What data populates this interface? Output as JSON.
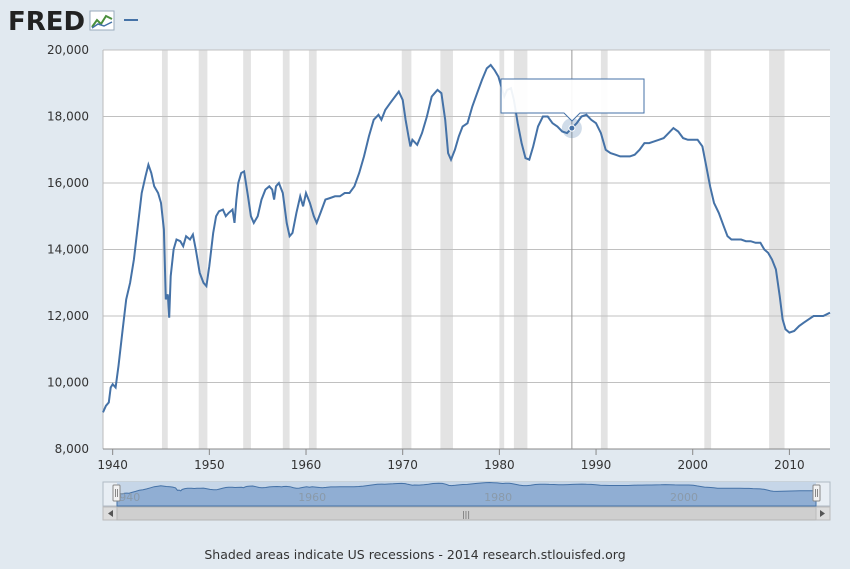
{
  "header": {
    "logo_text": "FRED",
    "logo_icon": "fred-chart-icon",
    "legend_dash": "series-legend-dash"
  },
  "footer": {
    "note": "Shaded areas indicate US recessions - 2014 research.stlouisfed.org"
  },
  "navigator": {
    "ticks": [
      "1940",
      "1960",
      "1980",
      "2000"
    ],
    "scroll_grip": "|||"
  },
  "tooltip": {
    "text": ""
  },
  "colors": {
    "line": "#4572a7",
    "recession": "#e3e3e3",
    "background": "#e1e9f0",
    "plot": "#ffffff",
    "grid": "#c0c0c0"
  },
  "chart_data": {
    "type": "line",
    "title": "",
    "xlabel": "",
    "ylabel": "",
    "xlim": [
      1939.0,
      2014.2
    ],
    "ylim": [
      8000,
      20000
    ],
    "x_ticks": [
      1940,
      1950,
      1960,
      1970,
      1980,
      1990,
      2000,
      2010
    ],
    "x_tick_labels": [
      "1940",
      "1950",
      "1960",
      "1970",
      "1980",
      "1990",
      "2000",
      "2010"
    ],
    "y_ticks": [
      8000,
      10000,
      12000,
      14000,
      16000,
      18000,
      20000
    ],
    "y_tick_labels": [
      "8,000",
      "10,000",
      "12,000",
      "14,000",
      "16,000",
      "18,000",
      "20,000"
    ],
    "grid": true,
    "recessions": [
      [
        1945.1,
        1945.7
      ],
      [
        1948.9,
        1949.8
      ],
      [
        1953.5,
        1954.3
      ],
      [
        1957.6,
        1958.3
      ],
      [
        1960.3,
        1961.1
      ],
      [
        1969.9,
        1970.9
      ],
      [
        1973.9,
        1975.2
      ],
      [
        1980.0,
        1980.5
      ],
      [
        1981.5,
        1982.9
      ],
      [
        1990.5,
        1991.2
      ],
      [
        2001.2,
        2001.9
      ],
      [
        2007.9,
        2009.5
      ]
    ],
    "hover_point": {
      "x": 1987.5,
      "y": 17650
    },
    "series": [
      {
        "points": [
          [
            1939.0,
            9100
          ],
          [
            1939.3,
            9300
          ],
          [
            1939.6,
            9400
          ],
          [
            1939.8,
            9850
          ],
          [
            1940.0,
            9950
          ],
          [
            1940.3,
            9850
          ],
          [
            1940.6,
            10500
          ],
          [
            1941.0,
            11500
          ],
          [
            1941.4,
            12500
          ],
          [
            1941.8,
            13000
          ],
          [
            1942.2,
            13700
          ],
          [
            1942.6,
            14700
          ],
          [
            1943.0,
            15700
          ],
          [
            1943.4,
            16200
          ],
          [
            1943.7,
            16550
          ],
          [
            1944.0,
            16300
          ],
          [
            1944.3,
            15900
          ],
          [
            1944.7,
            15700
          ],
          [
            1945.0,
            15400
          ],
          [
            1945.3,
            14600
          ],
          [
            1945.5,
            12500
          ],
          [
            1945.7,
            12650
          ],
          [
            1945.85,
            11950
          ],
          [
            1946.0,
            13200
          ],
          [
            1946.3,
            14000
          ],
          [
            1946.6,
            14300
          ],
          [
            1947.0,
            14250
          ],
          [
            1947.3,
            14100
          ],
          [
            1947.6,
            14400
          ],
          [
            1948.0,
            14300
          ],
          [
            1948.3,
            14450
          ],
          [
            1948.6,
            14000
          ],
          [
            1949.0,
            13300
          ],
          [
            1949.4,
            13000
          ],
          [
            1949.7,
            12900
          ],
          [
            1950.0,
            13500
          ],
          [
            1950.4,
            14500
          ],
          [
            1950.7,
            15000
          ],
          [
            1951.0,
            15150
          ],
          [
            1951.4,
            15200
          ],
          [
            1951.7,
            15000
          ],
          [
            1952.0,
            15100
          ],
          [
            1952.4,
            15200
          ],
          [
            1952.6,
            14800
          ],
          [
            1952.8,
            15500
          ],
          [
            1953.0,
            16000
          ],
          [
            1953.3,
            16300
          ],
          [
            1953.6,
            16350
          ],
          [
            1954.0,
            15600
          ],
          [
            1954.3,
            15000
          ],
          [
            1954.6,
            14800
          ],
          [
            1955.0,
            15000
          ],
          [
            1955.4,
            15500
          ],
          [
            1955.8,
            15800
          ],
          [
            1956.2,
            15900
          ],
          [
            1956.5,
            15800
          ],
          [
            1956.7,
            15500
          ],
          [
            1956.9,
            15900
          ],
          [
            1957.2,
            16000
          ],
          [
            1957.6,
            15700
          ],
          [
            1958.0,
            14800
          ],
          [
            1958.3,
            14400
          ],
          [
            1958.6,
            14500
          ],
          [
            1959.0,
            15100
          ],
          [
            1959.4,
            15600
          ],
          [
            1959.7,
            15300
          ],
          [
            1960.0,
            15700
          ],
          [
            1960.4,
            15400
          ],
          [
            1960.8,
            15000
          ],
          [
            1961.1,
            14800
          ],
          [
            1961.5,
            15100
          ],
          [
            1962.0,
            15500
          ],
          [
            1962.5,
            15550
          ],
          [
            1963.0,
            15600
          ],
          [
            1963.5,
            15600
          ],
          [
            1964.0,
            15700
          ],
          [
            1964.5,
            15700
          ],
          [
            1965.0,
            15900
          ],
          [
            1965.5,
            16300
          ],
          [
            1966.0,
            16800
          ],
          [
            1966.5,
            17400
          ],
          [
            1967.0,
            17900
          ],
          [
            1967.5,
            18050
          ],
          [
            1967.8,
            17900
          ],
          [
            1968.2,
            18200
          ],
          [
            1968.7,
            18400
          ],
          [
            1969.2,
            18600
          ],
          [
            1969.6,
            18750
          ],
          [
            1970.0,
            18500
          ],
          [
            1970.3,
            17900
          ],
          [
            1970.6,
            17400
          ],
          [
            1970.8,
            17100
          ],
          [
            1971.0,
            17300
          ],
          [
            1971.5,
            17150
          ],
          [
            1972.0,
            17500
          ],
          [
            1972.5,
            18000
          ],
          [
            1973.0,
            18600
          ],
          [
            1973.3,
            18700
          ],
          [
            1973.6,
            18800
          ],
          [
            1974.0,
            18700
          ],
          [
            1974.4,
            17900
          ],
          [
            1974.7,
            16900
          ],
          [
            1975.0,
            16700
          ],
          [
            1975.4,
            17000
          ],
          [
            1975.8,
            17400
          ],
          [
            1976.2,
            17700
          ],
          [
            1976.7,
            17800
          ],
          [
            1977.2,
            18300
          ],
          [
            1977.7,
            18700
          ],
          [
            1978.2,
            19100
          ],
          [
            1978.7,
            19450
          ],
          [
            1979.1,
            19550
          ],
          [
            1979.5,
            19400
          ],
          [
            1979.9,
            19200
          ],
          [
            1980.2,
            18900
          ],
          [
            1980.5,
            18600
          ],
          [
            1980.8,
            18800
          ],
          [
            1981.2,
            18850
          ],
          [
            1981.5,
            18500
          ],
          [
            1981.9,
            17800
          ],
          [
            1982.3,
            17200
          ],
          [
            1982.7,
            16750
          ],
          [
            1983.1,
            16700
          ],
          [
            1983.5,
            17100
          ],
          [
            1984.0,
            17700
          ],
          [
            1984.5,
            18000
          ],
          [
            1985.0,
            18000
          ],
          [
            1985.5,
            17800
          ],
          [
            1986.0,
            17700
          ],
          [
            1986.5,
            17550
          ],
          [
            1987.0,
            17500
          ],
          [
            1987.5,
            17650
          ],
          [
            1988.0,
            17800
          ],
          [
            1988.5,
            18000
          ],
          [
            1989.0,
            18050
          ],
          [
            1989.5,
            17900
          ],
          [
            1990.0,
            17800
          ],
          [
            1990.5,
            17500
          ],
          [
            1991.0,
            17000
          ],
          [
            1991.5,
            16900
          ],
          [
            1992.0,
            16850
          ],
          [
            1992.5,
            16800
          ],
          [
            1993.0,
            16800
          ],
          [
            1993.5,
            16800
          ],
          [
            1994.0,
            16850
          ],
          [
            1994.5,
            17000
          ],
          [
            1995.0,
            17200
          ],
          [
            1995.5,
            17200
          ],
          [
            1996.0,
            17250
          ],
          [
            1996.5,
            17300
          ],
          [
            1997.0,
            17350
          ],
          [
            1997.5,
            17500
          ],
          [
            1998.0,
            17650
          ],
          [
            1998.5,
            17550
          ],
          [
            1999.0,
            17350
          ],
          [
            1999.5,
            17300
          ],
          [
            2000.0,
            17300
          ],
          [
            2000.5,
            17300
          ],
          [
            2001.0,
            17100
          ],
          [
            2001.4,
            16500
          ],
          [
            2001.8,
            15900
          ],
          [
            2002.2,
            15400
          ],
          [
            2002.7,
            15100
          ],
          [
            2003.2,
            14700
          ],
          [
            2003.6,
            14400
          ],
          [
            2004.0,
            14300
          ],
          [
            2004.5,
            14300
          ],
          [
            2005.0,
            14300
          ],
          [
            2005.5,
            14250
          ],
          [
            2006.0,
            14250
          ],
          [
            2006.5,
            14200
          ],
          [
            2007.0,
            14200
          ],
          [
            2007.4,
            14000
          ],
          [
            2007.8,
            13900
          ],
          [
            2008.2,
            13700
          ],
          [
            2008.6,
            13400
          ],
          [
            2009.0,
            12600
          ],
          [
            2009.3,
            11900
          ],
          [
            2009.6,
            11600
          ],
          [
            2010.0,
            11500
          ],
          [
            2010.5,
            11550
          ],
          [
            2011.0,
            11700
          ],
          [
            2011.5,
            11800
          ],
          [
            2012.0,
            11900
          ],
          [
            2012.5,
            12000
          ],
          [
            2013.0,
            12000
          ],
          [
            2013.5,
            12000
          ],
          [
            2014.2,
            12100
          ]
        ]
      }
    ]
  }
}
